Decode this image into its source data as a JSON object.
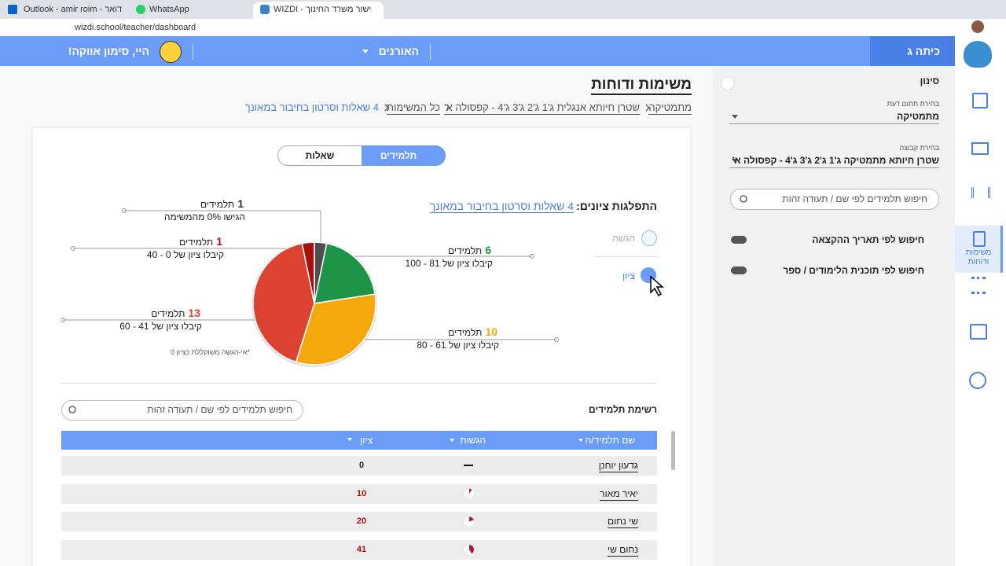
{
  "browser": {
    "tabs": [
      "Outlook - amir roim - דואר",
      "WhatsApp",
      "WIZDI - ות באישור משרד החינוך"
    ],
    "url": "wizdi.school/teacher/dashboard"
  },
  "header": {
    "class_name": "כיתה ג",
    "menu": "האורנים",
    "greeting": "היי, סימון אווקה!"
  },
  "nav": {
    "active_item": "משימות ודוחות"
  },
  "filter": {
    "title": "סינון",
    "subject_label": "בחירת תחום דעת",
    "subject": "מתמטיקה",
    "group_label": "בחירת קבוצה",
    "group": "שטרן חיותא מתמטיקה ג'1 ג'2 ג'3 ג'4 - קפסולה א'",
    "search_placeholder": "חיפוש תלמידים לפי שם / תעודה זהות",
    "toggles": [
      "חיפוש לפי תאריך ההקצאה",
      "חיפוש לפי תוכנית הלימודים / ספר"
    ]
  },
  "page": {
    "title": "משימות ודוחות",
    "breadcrumb": [
      "מתמטיקה",
      "שטרן חיותא אנגלית ג'1 ג'2 ג'3 ג'4 - קפסולה א'",
      "כל המשימות",
      "4 שאלות וסרטון בחיבור במאונך"
    ]
  },
  "view_tabs": [
    "תלמידים",
    "שאלות"
  ],
  "distribution": {
    "label": "התפלגות ציונים:",
    "task": "4 שאלות וסרטון בחיבור במאונך",
    "modes": [
      "הגשה",
      "ציון"
    ],
    "unit": "תלמידים",
    "slices": [
      {
        "count": 1,
        "caption": "הגישו 0% מהמשימה",
        "color": "#4d4d4d"
      },
      {
        "count": 6,
        "caption": "קיבלו ציון של 81 - 100",
        "color": "#1e9448"
      },
      {
        "count": 10,
        "caption": "קיבלו ציון של 61 - 80",
        "color": "#f5a80c"
      },
      {
        "count": 13,
        "caption": "קיבלו ציון של 41 - 60",
        "color": "#dc4232"
      },
      {
        "count": 1,
        "caption": "קיבלו ציון של 0 - 40",
        "color": "#a80f0f"
      }
    ],
    "note": "*אי-הגשה משוקללת כציון 0"
  },
  "students": {
    "title": "רשימת תלמידים",
    "search_placeholder": "חיפוש תלמידים לפי שם / תעודה זהות",
    "columns": [
      "שם תלמיד/ה",
      "הגשות",
      "ציון"
    ],
    "rows": [
      {
        "name": "גדעון יוחנן",
        "submission": null,
        "grade": 0
      },
      {
        "name": "יאיר מאור",
        "submission": 10,
        "grade": 10
      },
      {
        "name": "שי נחום",
        "submission": 20,
        "grade": 20
      },
      {
        "name": "נחום שי",
        "submission": 41,
        "grade": 41
      }
    ]
  }
}
